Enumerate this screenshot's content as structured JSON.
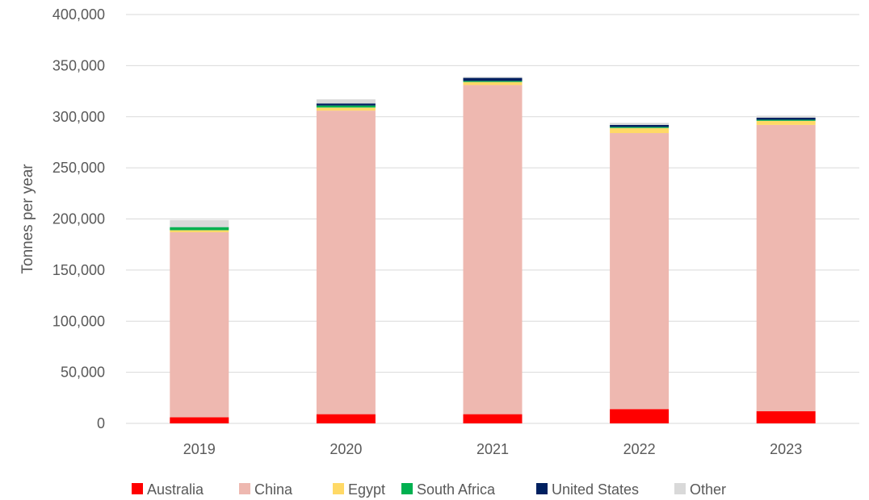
{
  "chart_data": {
    "type": "bar",
    "stacked": true,
    "title": "",
    "xlabel": "",
    "ylabel": "Tonnes per year",
    "ylim": [
      0,
      400000
    ],
    "yticks": [
      "0",
      "50,000",
      "100,000",
      "150,000",
      "200,000",
      "250,000",
      "300,000",
      "350,000",
      "400,000"
    ],
    "grid": true,
    "legend_position": "bottom",
    "categories": [
      "2019",
      "2020",
      "2021",
      "2022",
      "2023"
    ],
    "series": [
      {
        "name": "Australia",
        "color": "#ff0000",
        "values": [
          6000,
          9000,
          9000,
          14000,
          12000
        ]
      },
      {
        "name": "China",
        "color": "#eeb8b0",
        "values": [
          181000,
          297000,
          322000,
          270000,
          280000
        ]
      },
      {
        "name": "Egypt",
        "color": "#ffd966",
        "values": [
          2000,
          3000,
          3000,
          5000,
          4000
        ]
      },
      {
        "name": "South Africa",
        "color": "#00b050",
        "values": [
          3000,
          2000,
          1000,
          1000,
          1000
        ]
      },
      {
        "name": "United States",
        "color": "#002060",
        "values": [
          0,
          2000,
          3000,
          2000,
          2000
        ]
      },
      {
        "name": "Other",
        "color": "#d9d9d9",
        "values": [
          7000,
          4000,
          1000,
          2000,
          2000
        ]
      }
    ]
  }
}
